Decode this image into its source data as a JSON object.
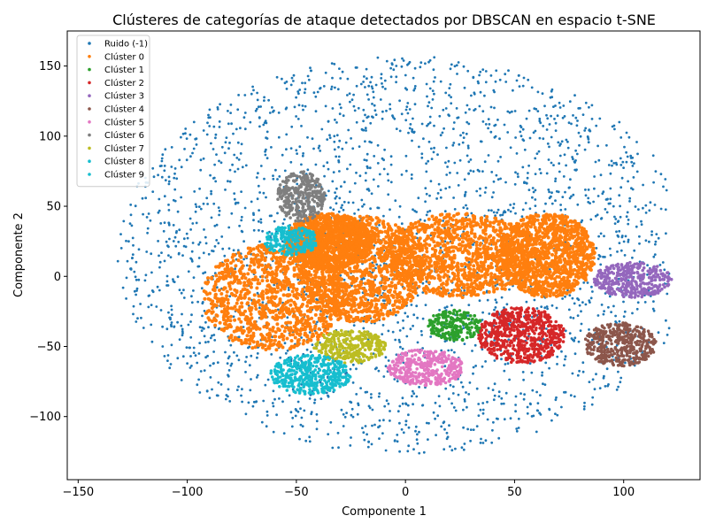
{
  "chart_data": {
    "type": "scatter",
    "title": "Clústeres de categorías de ataque detectados por DBSCAN en espacio t-SNE",
    "xlabel": "Componente 1",
    "ylabel": "Componente 2",
    "xlim": [
      -155,
      135
    ],
    "ylim": [
      -145,
      175
    ],
    "x_ticks": [
      -150,
      -100,
      -50,
      0,
      50,
      100
    ],
    "y_ticks": [
      -100,
      -50,
      0,
      50,
      100,
      150
    ],
    "x_tick_labels": [
      "−150",
      "−100",
      "−50",
      "0",
      "50",
      "100"
    ],
    "y_tick_labels": [
      "−100",
      "−50",
      "0",
      "50",
      "100",
      "150"
    ],
    "grid": false,
    "legend_position": "top-left",
    "series": [
      {
        "name": "Ruido (-1)",
        "color": "#1f77b4",
        "region": "scattered",
        "x_range": [
          -141,
          121
        ],
        "y_range": [
          -128,
          157
        ]
      },
      {
        "name": "Clúster 0",
        "color": "#ff7f0e",
        "region": "large central mass",
        "x_range": [
          -93,
          88
        ],
        "y_range": [
          -55,
          45
        ],
        "center": [
          0,
          5
        ]
      },
      {
        "name": "Clúster 1",
        "color": "#2ca02c",
        "x_range": [
          10,
          35
        ],
        "y_range": [
          -46,
          -24
        ],
        "center": [
          23,
          -35
        ]
      },
      {
        "name": "Clúster 2",
        "color": "#d62728",
        "x_range": [
          33,
          73
        ],
        "y_range": [
          -62,
          -22
        ],
        "center": [
          52,
          -42
        ]
      },
      {
        "name": "Clúster 3",
        "color": "#9467bd",
        "x_range": [
          86,
          122
        ],
        "y_range": [
          -15,
          10
        ],
        "center": [
          104,
          -4
        ]
      },
      {
        "name": "Clúster 4",
        "color": "#8c564b",
        "x_range": [
          82,
          115
        ],
        "y_range": [
          -64,
          -33
        ],
        "center": [
          98,
          -48
        ]
      },
      {
        "name": "Clúster 5",
        "color": "#e377c2",
        "x_range": [
          -8,
          27
        ],
        "y_range": [
          -78,
          -52
        ],
        "center": [
          8,
          -64
        ]
      },
      {
        "name": "Clúster 6",
        "color": "#7f7f7f",
        "x_range": [
          -59,
          -37
        ],
        "y_range": [
          39,
          75
        ],
        "center": [
          -49,
          58
        ]
      },
      {
        "name": "Clúster 7",
        "color": "#bcbd22",
        "x_range": [
          -42,
          -9
        ],
        "y_range": [
          -62,
          -38
        ],
        "center": [
          -27,
          -49
        ]
      },
      {
        "name": "Clúster 8",
        "color": "#17becf",
        "x_range": [
          -65,
          -40
        ],
        "y_range": [
          15,
          36
        ],
        "center": [
          -53,
          25
        ]
      },
      {
        "name": "Clúster 9",
        "color": "#17becf",
        "x_range": [
          -62,
          -25
        ],
        "y_range": [
          -84,
          -56
        ],
        "center": [
          -42,
          -70
        ]
      }
    ]
  }
}
